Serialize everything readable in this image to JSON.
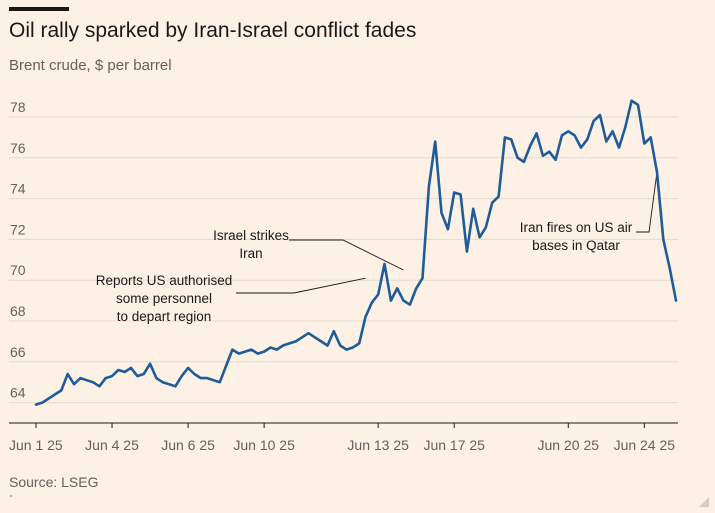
{
  "header": {
    "title": "Oil rally sparked by Iran-Israel conflict fades",
    "subtitle": "Brent crude, $ per barrel"
  },
  "footer": {
    "source": "Source: LSEG"
  },
  "chart_data": {
    "type": "line",
    "title": "Oil rally sparked by Iran-Israel conflict fades",
    "subtitle": "Brent crude, $ per barrel",
    "xlabel": "",
    "ylabel": "",
    "ylim": [
      63,
      80
    ],
    "yticks": [
      64,
      66,
      68,
      70,
      72,
      74,
      76,
      78
    ],
    "xticks": [
      "Jun 1 25",
      "Jun 4 25",
      "Jun 6 25",
      "Jun 10 25",
      "Jun 13 25",
      "Jun 17 25",
      "Jun 20 25",
      "Jun 24 25"
    ],
    "grid": "horizontal",
    "line_color": "#1f5c99",
    "annotations": [
      {
        "lines": [
          "Reports US authorised",
          "some personnel",
          "to depart region"
        ],
        "x_index": 52,
        "y": 70.1
      },
      {
        "lines": [
          "Israel strikes",
          "Iran"
        ],
        "x_index": 58,
        "y": 70.5
      },
      {
        "lines": [
          "Iran fires on US air",
          "bases in Qatar"
        ],
        "x_index": 98,
        "y": 75.3
      }
    ],
    "series": [
      {
        "tick_positions": [
          0,
          12,
          24,
          36,
          54,
          66,
          84,
          96
        ],
        "values": [
          63.9,
          64.0,
          64.2,
          64.4,
          64.6,
          65.4,
          64.9,
          65.2,
          65.1,
          65.0,
          64.8,
          65.2,
          65.3,
          65.6,
          65.5,
          65.7,
          65.3,
          65.4,
          65.9,
          65.2,
          65.0,
          64.9,
          64.8,
          65.3,
          65.7,
          65.4,
          65.2,
          65.2,
          65.1,
          65.0,
          65.8,
          66.6,
          66.4,
          66.5,
          66.6,
          66.4,
          66.5,
          66.7,
          66.6,
          66.8,
          66.9,
          67.0,
          67.2,
          67.4,
          67.2,
          67.0,
          66.8,
          67.5,
          66.8,
          66.6,
          66.7,
          66.9,
          68.2,
          68.9,
          69.3,
          70.8,
          69.0,
          69.6,
          69.0,
          68.8,
          69.6,
          70.1,
          74.6,
          76.8,
          73.3,
          72.5,
          74.3,
          74.2,
          71.4,
          73.5,
          72.1,
          72.6,
          73.8,
          74.1,
          77.0,
          76.9,
          76.0,
          75.8,
          76.6,
          77.2,
          76.1,
          76.3,
          75.9,
          77.1,
          77.3,
          77.1,
          76.5,
          76.9,
          77.8,
          78.1,
          76.8,
          77.3,
          76.5,
          77.5,
          78.8,
          78.6,
          76.7,
          77.0,
          75.3,
          72.0,
          70.6,
          69.0
        ],
        "x_index_note": ""
      }
    ]
  },
  "icons": {
    "resize": "resize-grip-icon"
  }
}
